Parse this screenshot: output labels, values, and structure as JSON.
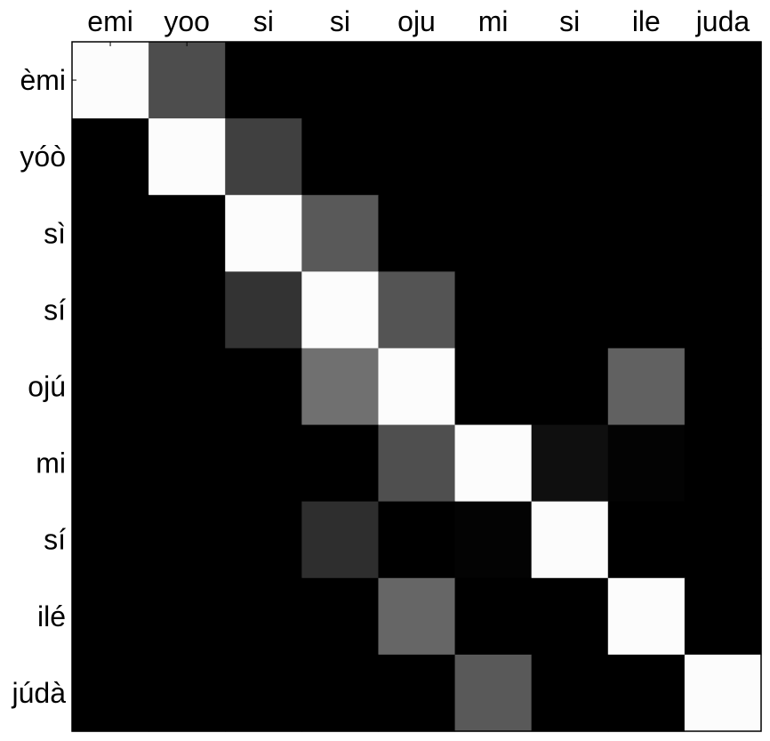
{
  "chart_data": {
    "type": "heatmap",
    "title": "",
    "xlabel": "",
    "ylabel": "",
    "x_labels": [
      "emi",
      "yoo",
      "si",
      "si",
      "oju",
      "mi",
      "si",
      "ile",
      "juda"
    ],
    "y_labels": [
      "èmi",
      "yóò",
      "sì",
      "sí",
      "ojú",
      "mi",
      "sí",
      "ilé",
      "júdà"
    ],
    "x_axis_position": "top",
    "colormap": "grayscale (black = 0, white = 1)",
    "value_range": [
      0,
      1
    ],
    "grid": false,
    "values": [
      [
        0.99,
        0.3,
        0.0,
        0.0,
        0.0,
        0.0,
        0.0,
        0.0,
        0.0
      ],
      [
        0.0,
        0.99,
        0.25,
        0.0,
        0.0,
        0.0,
        0.0,
        0.0,
        0.0
      ],
      [
        0.0,
        0.0,
        0.99,
        0.35,
        0.0,
        0.0,
        0.0,
        0.0,
        0.0
      ],
      [
        0.0,
        0.0,
        0.2,
        0.99,
        0.33,
        0.0,
        0.0,
        0.0,
        0.0
      ],
      [
        0.0,
        0.0,
        0.0,
        0.44,
        0.99,
        0.0,
        0.0,
        0.38,
        0.0
      ],
      [
        0.0,
        0.0,
        0.0,
        0.0,
        0.31,
        0.99,
        0.06,
        0.01,
        0.0
      ],
      [
        0.0,
        0.0,
        0.0,
        0.18,
        0.0,
        0.01,
        0.99,
        0.0,
        0.0
      ],
      [
        0.0,
        0.0,
        0.0,
        0.0,
        0.4,
        0.0,
        0.0,
        0.99,
        0.0
      ],
      [
        0.0,
        0.0,
        0.0,
        0.0,
        0.0,
        0.35,
        0.0,
        0.0,
        0.99
      ]
    ]
  }
}
